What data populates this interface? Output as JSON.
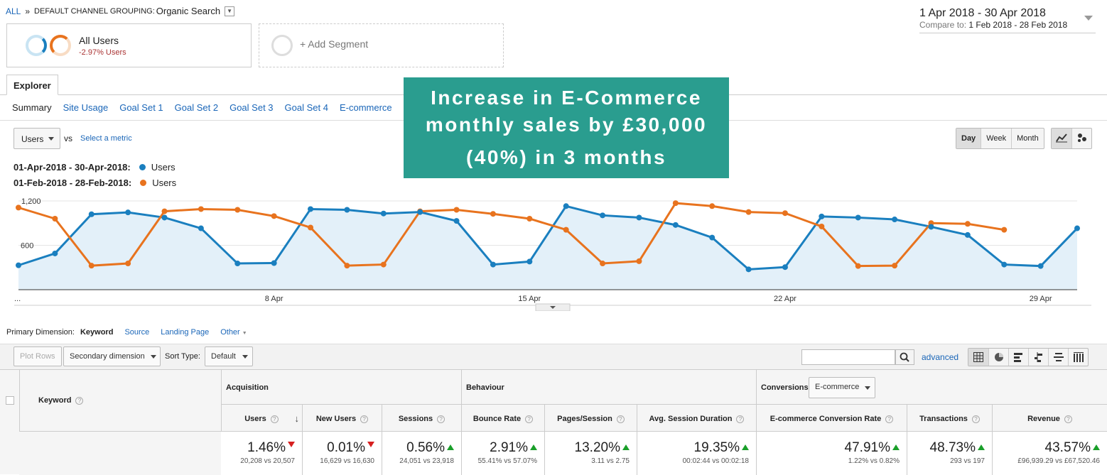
{
  "breadcrumb": {
    "all": "ALL",
    "sep": "»",
    "grouping_label": "DEFAULT CHANNEL GROUPING:",
    "grouping_value": "Organic Search"
  },
  "date_range": {
    "main": "1 Apr 2018 - 30 Apr 2018",
    "compare_label": "Compare to:",
    "compare_value": "1 Feb 2018 - 28 Feb 2018"
  },
  "segments": {
    "all_users": {
      "title": "All Users",
      "subtitle": "-2.97% Users"
    },
    "add": "+ Add Segment"
  },
  "tabs": {
    "explorer": "Explorer"
  },
  "subtabs": [
    "Summary",
    "Site Usage",
    "Goal Set 1",
    "Goal Set 2",
    "Goal Set 3",
    "Goal Set 4",
    "E-commerce"
  ],
  "banner": {
    "line1": "Increase in E-Commerce",
    "line2": "monthly sales by £30,000",
    "line3": "(40%) in 3 months"
  },
  "metric": {
    "selected": "Users",
    "vs": "vs",
    "select_metric": "Select a metric"
  },
  "granularity": [
    "Day",
    "Week",
    "Month"
  ],
  "legend": [
    {
      "range": "01-Apr-2018 - 30-Apr-2018:",
      "metric": "Users",
      "color": "#1a7fbf"
    },
    {
      "range": "01-Feb-2018 - 28-Feb-2018:",
      "metric": "Users",
      "color": "#e8731e"
    }
  ],
  "colors": {
    "blue": "#1a7fbf",
    "orange": "#e8731e",
    "fill": "#e3f0f9",
    "banner": "#2a9d8f"
  },
  "chart_data": {
    "type": "line",
    "y_ticks": [
      "1,200",
      "600"
    ],
    "x_ticks": [
      "...",
      "8 Apr",
      "15 Apr",
      "22 Apr",
      "29 Apr"
    ],
    "ylim": [
      0,
      1200
    ],
    "series": [
      {
        "name": "Users",
        "period": "01-Apr-2018 - 30-Apr-2018",
        "values": [
          330,
          490,
          1020,
          1045,
          975,
          830,
          355,
          360,
          1090,
          1080,
          1030,
          1050,
          930,
          340,
          380,
          1130,
          1005,
          975,
          875,
          705,
          275,
          305,
          990,
          975,
          950,
          850,
          740,
          340,
          320,
          830
        ]
      },
      {
        "name": "Users",
        "period": "01-Feb-2018 - 28-Feb-2018",
        "values": [
          1110,
          960,
          325,
          355,
          1060,
          1090,
          1080,
          995,
          840,
          325,
          340,
          1060,
          1080,
          1025,
          960,
          810,
          355,
          385,
          1170,
          1130,
          1050,
          1035,
          855,
          320,
          325,
          900,
          890,
          810
        ]
      }
    ]
  },
  "primary_dimension": {
    "label": "Primary Dimension:",
    "options": [
      "Keyword",
      "Source",
      "Landing Page",
      "Other"
    ]
  },
  "toolbar": {
    "plot_rows": "Plot Rows",
    "secondary": "Secondary dimension",
    "sort_label": "Sort Type:",
    "sort_value": "Default",
    "advanced": "advanced"
  },
  "table": {
    "keyword_header": "Keyword",
    "groups": {
      "acquisition": "Acquisition",
      "behaviour": "Behaviour",
      "conversions": "Conversions",
      "conversions_dd": "E-commerce"
    },
    "columns": [
      "Users",
      "New Users",
      "Sessions",
      "Bounce Rate",
      "Pages/Session",
      "Avg. Session Duration",
      "E-commerce Conversion Rate",
      "Transactions",
      "Revenue"
    ],
    "totals": [
      {
        "big": "1.46%",
        "small": "20,208 vs 20,507",
        "dir": "down"
      },
      {
        "big": "0.01%",
        "small": "16,629 vs 16,630",
        "dir": "down"
      },
      {
        "big": "0.56%",
        "small": "24,051 vs 23,918",
        "dir": "up"
      },
      {
        "big": "2.91%",
        "small": "55.41% vs 57.07%",
        "dir": "up"
      },
      {
        "big": "13.20%",
        "small": "3.11 vs 2.75",
        "dir": "up"
      },
      {
        "big": "19.35%",
        "small": "00:02:44 vs 00:02:18",
        "dir": "up"
      },
      {
        "big": "47.91%",
        "small": "1.22% vs 0.82%",
        "dir": "up"
      },
      {
        "big": "48.73%",
        "small": "293 vs 197",
        "dir": "up"
      },
      {
        "big": "43.57%",
        "small": "£96,939.29 vs £67,520.46",
        "dir": "up"
      }
    ]
  }
}
